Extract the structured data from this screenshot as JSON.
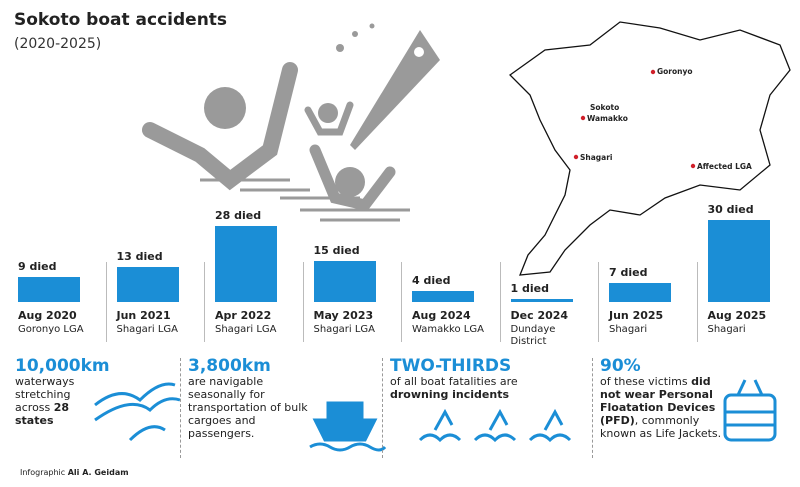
{
  "header": {
    "title": "Sokoto boat accidents",
    "subtitle": "(2020-2025)"
  },
  "chart_data": {
    "type": "bar",
    "color": "#1b8ed6",
    "categories": [
      "Aug 2020",
      "Jun 2021",
      "Apr 2022",
      "May 2023",
      "Aug 2024",
      "Dec 2024",
      "Jun 2025",
      "Aug 2025"
    ],
    "sublabels": [
      "Goronyo LGA",
      "Shagari LGA",
      "Shagari LGA",
      "Shagari LGA",
      "Wamakko LGA",
      "Dundaye District",
      "Shagari",
      "Shagari"
    ],
    "values": [
      9,
      13,
      28,
      15,
      4,
      1,
      7,
      30
    ],
    "value_labels": [
      "9 died",
      "13 died",
      "28 died",
      "15 died",
      "4 died",
      "1 died",
      "7 died",
      "30 died"
    ]
  },
  "map": {
    "labels": [
      "Goronyo",
      "Sokoto",
      "Wamakko",
      "Shagari",
      "Affected LGA"
    ]
  },
  "stats": [
    {
      "headline": "10,000km",
      "body": [
        {
          "text": "waterways stretching across ",
          "bold": false
        },
        {
          "text": "28 states",
          "bold": true
        }
      ]
    },
    {
      "headline": "3,800km",
      "body": [
        {
          "text": "are navigable seasonally for transportation of bulk cargoes and passengers.",
          "bold": false
        }
      ]
    },
    {
      "headline": "TWO-THIRDS",
      "body": [
        {
          "text": "of all boat fatalities are ",
          "bold": false
        },
        {
          "text": "drowning incidents",
          "bold": true
        }
      ]
    },
    {
      "headline": "90%",
      "body": [
        {
          "text": "of these victims ",
          "bold": false
        },
        {
          "text": "did not wear Personal Floatation Devices (PFD)",
          "bold": true
        },
        {
          "text": ", commonly known as Life Jackets.",
          "bold": false
        }
      ]
    }
  ],
  "credit": {
    "label": "Infographic",
    "name": "Ali A. Geidam"
  }
}
